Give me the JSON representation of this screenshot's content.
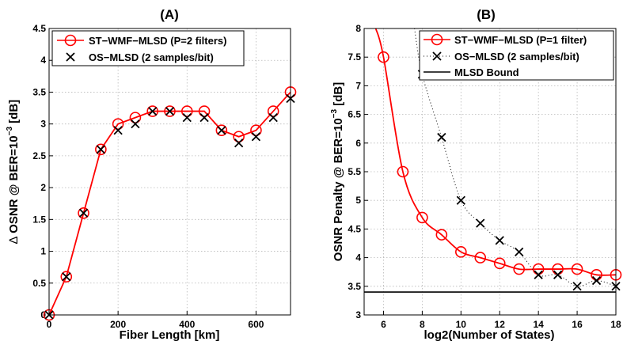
{
  "chart_data": [
    {
      "type": "line",
      "title": "(A)",
      "xlabel": "Fiber Length [km]",
      "ylabel": "Δ OSNR @ BER=10⁻³ [dB]",
      "ylabel_parts": {
        "delta": "∆",
        "main": " OSNR @ BER=10",
        "sup": "−3",
        "end": " [dB]"
      },
      "xlim": [
        0,
        700
      ],
      "ylim": [
        0,
        4.5
      ],
      "xticks": [
        0,
        200,
        400,
        600
      ],
      "yticks": [
        0,
        0.5,
        1,
        1.5,
        2,
        2.5,
        3,
        3.5,
        4,
        4.5
      ],
      "xtick_labels": [
        "0",
        "200",
        "400",
        "600"
      ],
      "ytick_labels": [
        "0",
        "0.5",
        "1",
        "1.5",
        "2",
        "2.5",
        "3",
        "3.5",
        "4",
        "4.5"
      ],
      "grid": true,
      "legend_position": "top-left",
      "series": [
        {
          "name": "ST−WMF−MLSD (P=2 filters)",
          "color": "#ff0000",
          "style": "line-circle",
          "x": [
            0,
            50,
            100,
            150,
            200,
            250,
            300,
            350,
            400,
            450,
            500,
            550,
            600,
            650,
            700
          ],
          "y": [
            0.0,
            0.6,
            1.6,
            2.6,
            3.0,
            3.1,
            3.2,
            3.2,
            3.2,
            3.2,
            2.9,
            2.8,
            2.9,
            3.2,
            3.5
          ]
        },
        {
          "name": "OS−MLSD (2 samples/bit)",
          "color": "#000000",
          "style": "x-marker",
          "x": [
            0,
            50,
            100,
            150,
            200,
            250,
            300,
            350,
            400,
            450,
            500,
            550,
            600,
            650,
            700
          ],
          "y": [
            0.0,
            0.6,
            1.6,
            2.6,
            2.9,
            3.0,
            3.2,
            3.2,
            3.1,
            3.1,
            2.9,
            2.7,
            2.8,
            3.1,
            3.4
          ]
        }
      ]
    },
    {
      "type": "line",
      "title": "(B)",
      "xlabel": "log2(Number of States)",
      "ylabel": "OSNR Penalty @ BER=10⁻³ [dB]",
      "ylabel_parts": {
        "main": "OSNR Penalty @ BER=10",
        "sup": "−3",
        "end": " [dB]"
      },
      "xlim": [
        5,
        18
      ],
      "ylim": [
        3,
        8
      ],
      "xticks": [
        6,
        8,
        10,
        12,
        14,
        16,
        18
      ],
      "yticks": [
        3,
        3.5,
        4,
        4.5,
        5,
        5.5,
        6,
        6.5,
        7,
        7.5,
        8
      ],
      "xtick_labels": [
        "6",
        "8",
        "10",
        "12",
        "14",
        "16",
        "18"
      ],
      "ytick_labels": [
        "3",
        "3.5",
        "4",
        "4.5",
        "5",
        "5.5",
        "6",
        "6.5",
        "7",
        "7.5",
        "8"
      ],
      "grid": true,
      "legend_position": "top-right",
      "series": [
        {
          "name": "ST−WMF−MLSD (P=1 filter)",
          "color": "#ff0000",
          "style": "smooth-line-circle",
          "x": [
            6,
            7,
            8,
            9,
            10,
            11,
            12,
            13,
            14,
            15,
            16,
            17,
            18
          ],
          "y": [
            7.5,
            5.5,
            4.7,
            4.4,
            4.1,
            4.0,
            3.9,
            3.8,
            3.8,
            3.8,
            3.8,
            3.7,
            3.7
          ],
          "curve_start": {
            "x": 5.6,
            "y": 8.0
          }
        },
        {
          "name": "OS−MLSD (2 samples/bit)",
          "color": "#000000",
          "style": "dotted-line-x",
          "x": [
            8,
            9,
            10,
            11,
            12,
            13,
            14,
            15,
            16,
            17,
            18
          ],
          "y": [
            7.2,
            6.1,
            5.0,
            4.6,
            4.3,
            4.1,
            3.7,
            3.7,
            3.5,
            3.6,
            3.5
          ]
        },
        {
          "name": "MLSD Bound",
          "color": "#000000",
          "style": "hline",
          "y": 3.4
        }
      ]
    }
  ]
}
